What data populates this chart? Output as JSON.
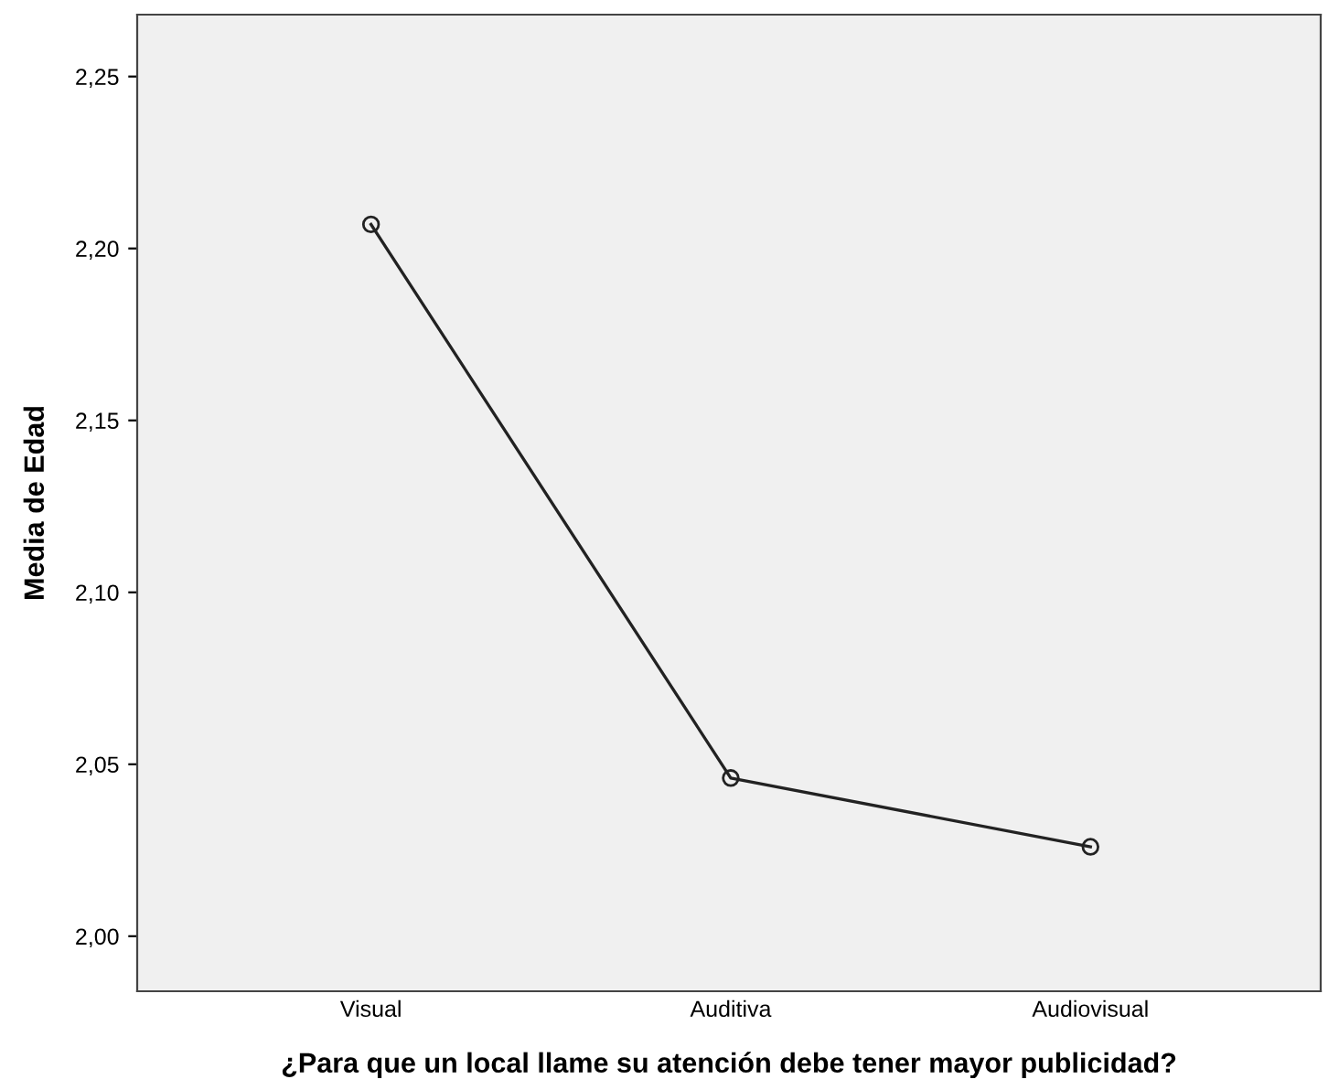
{
  "chart_data": {
    "type": "line",
    "xlabel": "¿Para que un local llame su atención debe tener mayor publicidad?",
    "ylabel": "Media de Edad",
    "categories": [
      "Visual",
      "Auditiva",
      "Audiovisual"
    ],
    "series": [
      {
        "color": "#222222",
        "values": [
          2.207,
          2.046,
          2.026
        ]
      }
    ],
    "ylim": [
      1.984,
      2.268
    ],
    "yticks": [
      {
        "value": 2.0,
        "label": "2,00"
      },
      {
        "value": 2.05,
        "label": "2,05"
      },
      {
        "value": 2.1,
        "label": "2,10"
      },
      {
        "value": 2.15,
        "label": "2,15"
      },
      {
        "value": 2.2,
        "label": "2,20"
      },
      {
        "value": 2.25,
        "label": "2,25"
      }
    ],
    "grid": false,
    "legend": false,
    "marker": "circle",
    "line_style": "solid"
  }
}
